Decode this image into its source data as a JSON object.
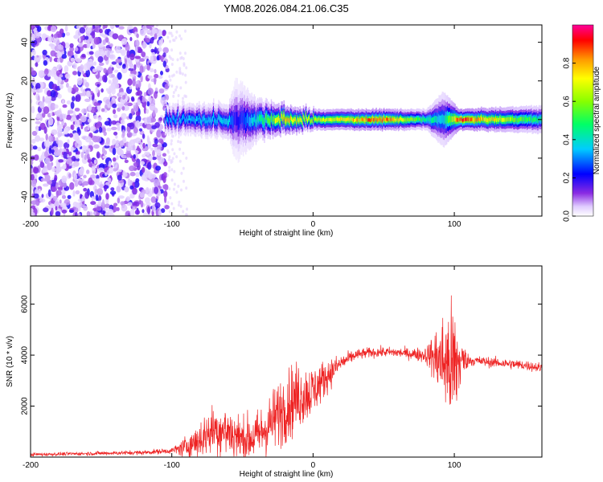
{
  "title": "YM08.2026.084.21.06.C35",
  "chart_data": [
    {
      "type": "heatmap",
      "title": "",
      "xlabel": "Height of straight line (km)",
      "ylabel": "Frequency (Hz)",
      "xlim": [
        -200,
        162
      ],
      "ylim": [
        -50,
        49
      ],
      "xticks": [
        -200,
        -100,
        0,
        100
      ],
      "yticks": [
        -40,
        -20,
        0,
        20,
        40
      ],
      "colorbar": {
        "label": "Normalized spectral amplitude",
        "range": [
          0,
          1
        ],
        "ticks": [
          "0.0",
          "0.2",
          "0.4",
          "0.6",
          "0.8"
        ],
        "tick_values": [
          0,
          0.2,
          0.4,
          0.6,
          0.8
        ]
      },
      "band": {
        "noise_region_x": [
          -200,
          -103
        ],
        "signal_start_x": -105,
        "center_freq_hz": 0,
        "segments": [
          {
            "x": -105,
            "halfwidth_hz": 4,
            "peak": 0.35
          },
          {
            "x": -60,
            "halfwidth_hz": 5,
            "peak": 0.4
          },
          {
            "x": -55,
            "halfwidth_hz": 12,
            "peak": 0.2
          },
          {
            "x": -40,
            "halfwidth_hz": 6,
            "peak": 0.45
          },
          {
            "x": -20,
            "halfwidth_hz": 4,
            "peak": 0.85
          },
          {
            "x": 0,
            "halfwidth_hz": 3,
            "peak": 0.7
          },
          {
            "x": 50,
            "halfwidth_hz": 3,
            "peak": 0.95
          },
          {
            "x": 80,
            "halfwidth_hz": 3,
            "peak": 0.5
          },
          {
            "x": 92,
            "halfwidth_hz": 8,
            "peak": 0.4
          },
          {
            "x": 103,
            "halfwidth_hz": 3,
            "peak": 1.0
          },
          {
            "x": 162,
            "halfwidth_hz": 4,
            "peak": 0.5
          }
        ]
      }
    },
    {
      "type": "line",
      "title": "",
      "xlabel": "Height of straight line (km)",
      "ylabel": "SNR (10 * v/v)",
      "xlim": [
        -200,
        162
      ],
      "ylim": [
        0,
        7500
      ],
      "xticks": [
        -200,
        -100,
        0,
        100
      ],
      "yticks": [
        2000,
        4000,
        6000
      ],
      "series": [
        {
          "name": "SNR",
          "color": "#ee2222",
          "x": [
            -200,
            -180,
            -150,
            -120,
            -100,
            -90,
            -80,
            -70,
            -60,
            -50,
            -40,
            -30,
            -20,
            -10,
            0,
            10,
            20,
            30,
            40,
            50,
            60,
            70,
            80,
            85,
            90,
            95,
            100,
            105,
            110,
            120,
            130,
            140,
            150,
            162
          ],
          "values": [
            100,
            120,
            150,
            180,
            250,
            400,
            700,
            1100,
            1000,
            700,
            800,
            1300,
            2000,
            2400,
            2600,
            3200,
            3700,
            4000,
            4100,
            4120,
            4100,
            4050,
            4000,
            3950,
            3800,
            3700,
            3500,
            3800,
            3800,
            3750,
            3700,
            3650,
            3600,
            3500
          ],
          "noise": [
            60,
            60,
            70,
            80,
            100,
            400,
            700,
            900,
            1000,
            800,
            900,
            1100,
            1300,
            1200,
            900,
            600,
            300,
            200,
            180,
            180,
            180,
            200,
            300,
            800,
            1500,
            2000,
            2500,
            800,
            200,
            180,
            180,
            180,
            180,
            180
          ]
        }
      ]
    }
  ]
}
